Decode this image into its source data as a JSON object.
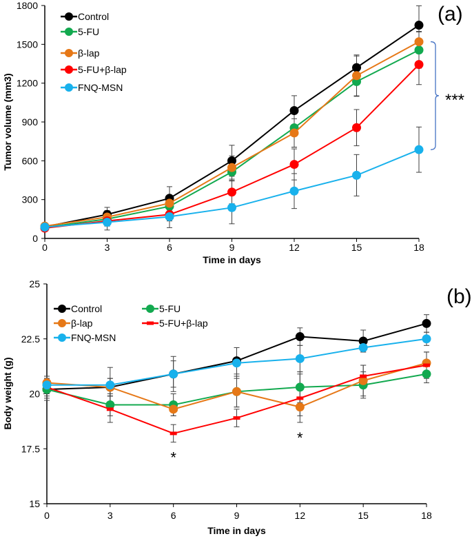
{
  "chart_data": [
    {
      "type": "line",
      "panel_label": "(a)",
      "xlabel": "Time in days",
      "ylabel": "Tumor volume (mm3)",
      "x": [
        0,
        3,
        6,
        9,
        12,
        15,
        18
      ],
      "xticks": [
        "0",
        "3",
        "6",
        "9",
        "12",
        "15",
        "18"
      ],
      "yticks": [
        "0",
        "300",
        "600",
        "900",
        "1200",
        "1500",
        "1800"
      ],
      "ylim": [
        0,
        1800
      ],
      "xlim": [
        0,
        18
      ],
      "grid": false,
      "legend_placement": "top-left",
      "annotation": "***",
      "series": [
        {
          "name": "Control",
          "color": "#000000",
          "marker": "circle",
          "values": [
            90,
            185,
            310,
            600,
            988,
            1320,
            1648
          ],
          "errors": [
            20,
            55,
            90,
            120,
            115,
            90,
            150
          ]
        },
        {
          "name": "5-FU",
          "color": "#12a94f",
          "marker": "circle",
          "values": [
            85,
            150,
            248,
            514,
            855,
            1212,
            1456
          ],
          "errors": [
            20,
            45,
            60,
            70,
            150,
            110,
            140
          ]
        },
        {
          "name": "β-lap",
          "color": "#e67817",
          "marker": "circle",
          "values": [
            95,
            165,
            272,
            548,
            815,
            1258,
            1520
          ],
          "errors": [
            20,
            50,
            60,
            90,
            110,
            160,
            80
          ]
        },
        {
          "name": "5-FU+β-lap",
          "color": "#ff0000",
          "marker": "circle",
          "values": [
            80,
            135,
            185,
            358,
            572,
            856,
            1344
          ],
          "errors": [
            15,
            40,
            50,
            90,
            120,
            140,
            155
          ]
        },
        {
          "name": "FNQ-MSN",
          "color": "#18b1ec",
          "marker": "circle",
          "values": [
            88,
            125,
            168,
            238,
            366,
            488,
            686
          ],
          "errors": [
            15,
            60,
            85,
            125,
            135,
            160,
            175
          ]
        }
      ]
    },
    {
      "type": "line",
      "panel_label": "(b)",
      "xlabel": "Time in days",
      "ylabel": "Body weight (g)",
      "x": [
        0,
        3,
        6,
        9,
        12,
        15,
        18
      ],
      "xticks": [
        "0",
        "3",
        "6",
        "9",
        "12",
        "15",
        "18"
      ],
      "yticks": [
        "15",
        "17.5",
        "20",
        "22.5",
        "25"
      ],
      "ylim": [
        15,
        25
      ],
      "xlim": [
        0,
        18
      ],
      "grid": false,
      "legend_placement": "top-left",
      "annotations": [
        {
          "x": 6,
          "text": "*"
        },
        {
          "x": 12,
          "text": "*"
        }
      ],
      "series": [
        {
          "name": "Control",
          "color": "#000000",
          "marker": "circle",
          "values": [
            20.2,
            20.3,
            20.9,
            21.5,
            22.6,
            22.4,
            23.2
          ],
          "errors": [
            0.5,
            0.4,
            0.6,
            0.6,
            0.4,
            0.5,
            0.4
          ]
        },
        {
          "name": "5-FU",
          "color": "#12a94f",
          "marker": "circle",
          "values": [
            20.2,
            19.5,
            19.5,
            20.1,
            20.3,
            20.4,
            20.9
          ],
          "errors": [
            0.4,
            0.5,
            0.5,
            0.7,
            0.7,
            0.6,
            0.4
          ]
        },
        {
          "name": "β-lap",
          "color": "#e67817",
          "marker": "circle",
          "values": [
            20.5,
            20.3,
            19.3,
            20.1,
            19.4,
            20.6,
            21.4
          ],
          "errors": [
            0.3,
            0.4,
            0.3,
            0.7,
            0.4,
            0.7,
            0.5
          ]
        },
        {
          "name": "5-FU+β-lap",
          "color": "#ff0000",
          "marker": "dash",
          "values": [
            20.3,
            19.3,
            18.2,
            18.9,
            19.8,
            20.8,
            21.3
          ],
          "errors": [
            0.4,
            0.6,
            0.4,
            0.4,
            1.1,
            0.5,
            0.6
          ]
        },
        {
          "name": "FNQ-MSN",
          "color": "#18b1ec",
          "marker": "circle",
          "values": [
            20.4,
            20.4,
            20.9,
            21.4,
            21.6,
            22.1,
            22.5
          ],
          "errors": [
            0.4,
            0.8,
            0.8,
            0.7,
            0.6,
            0.2,
            0.3
          ]
        }
      ]
    }
  ],
  "colors": {
    "bracket": "#4472c4",
    "axis": "#000000",
    "error_bar": "#404040"
  }
}
